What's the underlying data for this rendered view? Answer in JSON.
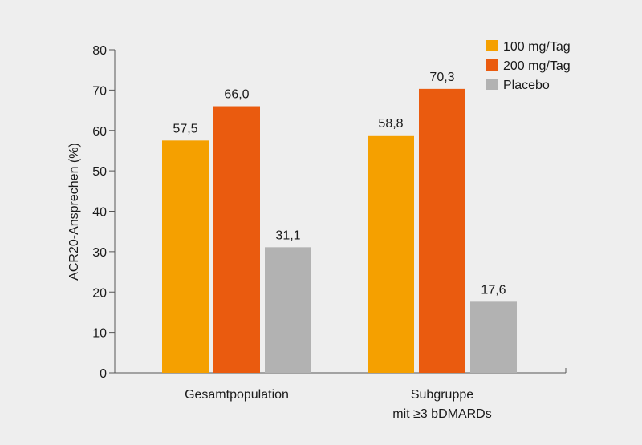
{
  "chart_data": {
    "type": "bar",
    "ylabel": "ACR20-Ansprechen (%)",
    "xlabel": "",
    "ylim": [
      0,
      80
    ],
    "yticks": [
      0,
      10,
      20,
      30,
      40,
      50,
      60,
      70,
      80
    ],
    "grid": false,
    "legend_position": "top-right",
    "categories": [
      [
        "Gesamtpopulation"
      ],
      [
        "Subgruppe",
        "mit ≥3 bDMARDs"
      ]
    ],
    "series": [
      {
        "name": "100 mg/Tag",
        "color": "#f5a000",
        "values": [
          57.5,
          58.8
        ],
        "labels": [
          "57,5",
          "58,8"
        ]
      },
      {
        "name": "200 mg/Tag",
        "color": "#ea5b0f",
        "values": [
          66.0,
          70.3
        ],
        "labels": [
          "66,0",
          "70,3"
        ]
      },
      {
        "name": "Placebo",
        "color": "#b2b2b2",
        "values": [
          31.1,
          17.6
        ],
        "labels": [
          "31,1",
          "17,6"
        ]
      }
    ],
    "background": "#eeeeee",
    "axis_color": "#555555"
  }
}
